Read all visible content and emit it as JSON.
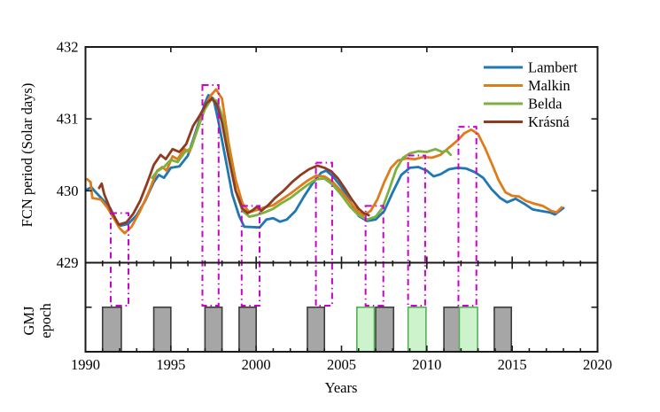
{
  "figure": {
    "ylabel_main": "FCN period (Solar days)",
    "ylabel_lower_line1": "GMJ",
    "ylabel_lower_line2": "epoch",
    "xlabel": "Years"
  },
  "chart_data": {
    "type": "line",
    "title": "",
    "xlabel": "Years",
    "ylabel": "FCN period (Solar days)",
    "xlim": [
      1990,
      2020
    ],
    "ylim_main": [
      429,
      432
    ],
    "x_ticks": [
      1990,
      1995,
      2000,
      2005,
      2010,
      2015,
      2020
    ],
    "y_ticks": [
      429,
      430,
      431,
      432
    ],
    "grid": false,
    "legend_position": "upper right",
    "colors": {
      "spine": "#1a1a1a",
      "highlight": "#cc00cc",
      "gray_bar_fill": "#a6a6a6",
      "gray_bar_stroke": "#3c3c3c",
      "green_bar_fill": "#cdf3cd",
      "green_bar_stroke": "#55b055"
    },
    "series": [
      {
        "name": "Lambert",
        "color": "#1f77b4",
        "points": [
          [
            1990.1,
            430.02
          ],
          [
            1990.35,
            430.05
          ],
          [
            1990.6,
            429.98
          ],
          [
            1991.0,
            429.88
          ],
          [
            1991.45,
            429.76
          ],
          [
            1991.95,
            429.51
          ],
          [
            1992.5,
            429.54
          ],
          [
            1993.0,
            429.66
          ],
          [
            1993.5,
            429.86
          ],
          [
            1994.0,
            430.12
          ],
          [
            1994.3,
            430.22
          ],
          [
            1994.6,
            430.18
          ],
          [
            1995.0,
            430.32
          ],
          [
            1995.5,
            430.34
          ],
          [
            1996.0,
            430.49
          ],
          [
            1996.5,
            430.85
          ],
          [
            1997.0,
            431.22
          ],
          [
            1997.2,
            431.33
          ],
          [
            1997.5,
            431.28
          ],
          [
            1997.8,
            430.95
          ],
          [
            1998.2,
            430.45
          ],
          [
            1998.6,
            429.95
          ],
          [
            1999.0,
            429.65
          ],
          [
            1999.3,
            429.5
          ],
          [
            2000.2,
            429.49
          ],
          [
            2000.6,
            429.6
          ],
          [
            2001.0,
            429.62
          ],
          [
            2001.4,
            429.57
          ],
          [
            2001.8,
            429.6
          ],
          [
            2002.3,
            429.72
          ],
          [
            2002.8,
            429.92
          ],
          [
            2003.3,
            430.1
          ],
          [
            2003.8,
            430.25
          ],
          [
            2004.1,
            430.28
          ],
          [
            2004.5,
            430.2
          ],
          [
            2005.0,
            430.05
          ],
          [
            2005.5,
            429.85
          ],
          [
            2006.0,
            429.65
          ],
          [
            2006.5,
            429.58
          ],
          [
            2007.0,
            429.6
          ],
          [
            2007.5,
            429.72
          ],
          [
            2008.0,
            429.98
          ],
          [
            2008.5,
            430.22
          ],
          [
            2009.0,
            430.32
          ],
          [
            2009.5,
            430.33
          ],
          [
            2010.0,
            430.28
          ],
          [
            2010.4,
            430.2
          ],
          [
            2010.8,
            430.23
          ],
          [
            2011.3,
            430.3
          ],
          [
            2011.8,
            430.32
          ],
          [
            2012.3,
            430.31
          ],
          [
            2012.8,
            430.26
          ],
          [
            2013.3,
            430.18
          ],
          [
            2013.8,
            430.02
          ],
          [
            2014.3,
            429.9
          ],
          [
            2014.7,
            429.84
          ],
          [
            2015.2,
            429.89
          ],
          [
            2015.7,
            429.82
          ],
          [
            2016.2,
            429.74
          ],
          [
            2016.7,
            429.72
          ],
          [
            2017.2,
            429.7
          ],
          [
            2017.5,
            429.67
          ],
          [
            2018.0,
            429.76
          ]
        ]
      },
      {
        "name": "Malkin",
        "color": "#e07b1a",
        "points": [
          [
            1990.1,
            430.16
          ],
          [
            1990.3,
            430.12
          ],
          [
            1990.4,
            429.9
          ],
          [
            1990.9,
            429.88
          ],
          [
            1991.3,
            429.76
          ],
          [
            1991.7,
            429.6
          ],
          [
            1992.0,
            429.48
          ],
          [
            1992.3,
            429.41
          ],
          [
            1992.7,
            429.5
          ],
          [
            1993.2,
            429.72
          ],
          [
            1993.7,
            429.98
          ],
          [
            1994.2,
            430.28
          ],
          [
            1994.5,
            430.33
          ],
          [
            1994.75,
            430.28
          ],
          [
            1995.1,
            430.48
          ],
          [
            1995.4,
            430.44
          ],
          [
            1995.8,
            430.58
          ],
          [
            1996.1,
            430.54
          ],
          [
            1996.5,
            430.82
          ],
          [
            1997.0,
            431.18
          ],
          [
            1997.35,
            431.33
          ],
          [
            1997.65,
            431.41
          ],
          [
            1998.0,
            431.28
          ],
          [
            1998.4,
            430.65
          ],
          [
            1998.8,
            430.15
          ],
          [
            1999.2,
            429.82
          ],
          [
            1999.6,
            429.7
          ],
          [
            2000.0,
            429.73
          ],
          [
            2000.5,
            429.77
          ],
          [
            2001.0,
            429.8
          ],
          [
            2001.5,
            429.88
          ],
          [
            2002.0,
            429.96
          ],
          [
            2002.5,
            430.05
          ],
          [
            2003.0,
            430.14
          ],
          [
            2003.5,
            430.21
          ],
          [
            2004.0,
            430.2
          ],
          [
            2004.5,
            430.12
          ],
          [
            2005.0,
            429.99
          ],
          [
            2005.5,
            429.84
          ],
          [
            2006.0,
            429.7
          ],
          [
            2006.3,
            429.66
          ],
          [
            2006.7,
            429.72
          ],
          [
            2007.1,
            429.88
          ],
          [
            2007.5,
            430.12
          ],
          [
            2007.9,
            430.32
          ],
          [
            2008.3,
            430.42
          ],
          [
            2008.8,
            430.45
          ],
          [
            2009.3,
            430.44
          ],
          [
            2009.8,
            430.47
          ],
          [
            2010.3,
            430.46
          ],
          [
            2010.8,
            430.5
          ],
          [
            2011.3,
            430.6
          ],
          [
            2011.8,
            430.7
          ],
          [
            2012.2,
            430.8
          ],
          [
            2012.6,
            430.85
          ],
          [
            2013.0,
            430.79
          ],
          [
            2013.4,
            430.6
          ],
          [
            2013.8,
            430.38
          ],
          [
            2014.2,
            430.15
          ],
          [
            2014.6,
            429.98
          ],
          [
            2015.0,
            429.93
          ],
          [
            2015.4,
            429.92
          ],
          [
            2015.8,
            429.86
          ],
          [
            2016.3,
            429.82
          ],
          [
            2016.8,
            429.79
          ],
          [
            2017.3,
            429.72
          ],
          [
            2017.6,
            429.7
          ],
          [
            2017.9,
            429.77
          ]
        ]
      },
      {
        "name": "Belda",
        "color": "#7cb13f",
        "points": [
          [
            1993.9,
            430.18
          ],
          [
            1994.2,
            430.27
          ],
          [
            1994.6,
            430.33
          ],
          [
            1995.0,
            430.43
          ],
          [
            1995.4,
            430.4
          ],
          [
            1995.8,
            430.53
          ],
          [
            1996.2,
            430.6
          ],
          [
            1996.6,
            430.88
          ],
          [
            1997.0,
            431.14
          ],
          [
            1997.4,
            431.28
          ],
          [
            1997.7,
            431.25
          ],
          [
            1998.0,
            431.05
          ],
          [
            1998.4,
            430.5
          ],
          [
            1998.8,
            430.0
          ],
          [
            1999.2,
            429.72
          ],
          [
            1999.6,
            429.64
          ],
          [
            2000.0,
            429.66
          ],
          [
            2000.5,
            429.7
          ],
          [
            2001.0,
            429.75
          ],
          [
            2001.5,
            429.83
          ],
          [
            2002.0,
            429.9
          ],
          [
            2002.5,
            429.99
          ],
          [
            2003.0,
            430.08
          ],
          [
            2003.5,
            430.16
          ],
          [
            2004.0,
            430.17
          ],
          [
            2004.5,
            430.08
          ],
          [
            2005.0,
            429.94
          ],
          [
            2005.5,
            429.78
          ],
          [
            2006.0,
            429.66
          ],
          [
            2006.5,
            429.6
          ],
          [
            2007.0,
            429.64
          ],
          [
            2007.4,
            429.76
          ],
          [
            2007.8,
            430.02
          ],
          [
            2008.2,
            430.3
          ],
          [
            2008.6,
            430.46
          ],
          [
            2009.0,
            430.52
          ],
          [
            2009.5,
            430.55
          ],
          [
            2010.0,
            430.54
          ],
          [
            2010.5,
            430.58
          ],
          [
            2010.9,
            430.54
          ],
          [
            2011.15,
            430.56
          ],
          [
            2011.4,
            430.5
          ]
        ]
      },
      {
        "name": "Krásná",
        "color": "#8e3b20",
        "points": [
          [
            1990.8,
            430.04
          ],
          [
            1990.95,
            430.1
          ],
          [
            1991.1,
            429.95
          ],
          [
            1991.5,
            429.72
          ],
          [
            1991.95,
            429.53
          ],
          [
            1992.4,
            429.56
          ],
          [
            1992.8,
            429.68
          ],
          [
            1993.2,
            429.86
          ],
          [
            1993.6,
            430.1
          ],
          [
            1994.0,
            430.36
          ],
          [
            1994.4,
            430.5
          ],
          [
            1994.7,
            430.44
          ],
          [
            1995.1,
            430.58
          ],
          [
            1995.5,
            430.54
          ],
          [
            1995.9,
            430.65
          ],
          [
            1996.3,
            430.9
          ],
          [
            1996.7,
            431.05
          ],
          [
            1997.1,
            431.22
          ],
          [
            1997.4,
            431.28
          ],
          [
            1997.7,
            431.2
          ],
          [
            1998.0,
            430.95
          ],
          [
            1998.4,
            430.45
          ],
          [
            1998.8,
            430.0
          ],
          [
            1999.2,
            429.75
          ],
          [
            1999.5,
            429.69
          ],
          [
            1999.8,
            429.73
          ],
          [
            2000.05,
            429.78
          ],
          [
            2000.3,
            429.72
          ],
          [
            2000.7,
            429.8
          ],
          [
            2001.1,
            429.9
          ],
          [
            2001.6,
            430.0
          ],
          [
            2002.1,
            430.12
          ],
          [
            2002.6,
            430.22
          ],
          [
            2003.1,
            430.3
          ],
          [
            2003.6,
            430.35
          ],
          [
            2004.0,
            430.32
          ],
          [
            2004.4,
            430.27
          ],
          [
            2004.8,
            430.17
          ],
          [
            2005.2,
            430.03
          ],
          [
            2005.6,
            429.88
          ],
          [
            2006.0,
            429.75
          ],
          [
            2006.3,
            429.69
          ],
          [
            2006.6,
            429.66
          ]
        ]
      }
    ],
    "highlight_rects": [
      {
        "x1": 1991.48,
        "x2": 1992.52,
        "top": 429.69
      },
      {
        "x1": 1996.85,
        "x2": 1997.8,
        "top": 431.47
      },
      {
        "x1": 1999.15,
        "x2": 2000.2,
        "top": 429.79
      },
      {
        "x1": 2003.5,
        "x2": 2004.45,
        "top": 430.39
      },
      {
        "x1": 2006.41,
        "x2": 2007.45,
        "top": 429.79
      },
      {
        "x1": 2008.9,
        "x2": 2009.9,
        "top": 430.49
      },
      {
        "x1": 2011.85,
        "x2": 2012.9,
        "top": 430.89
      }
    ],
    "gmj_epochs": {
      "bar_height_frac": 0.5,
      "gray": [
        [
          1991.0,
          1992.1
        ],
        [
          1994.0,
          1995.0
        ],
        [
          1997.0,
          1998.0
        ],
        [
          1999.0,
          2000.0
        ],
        [
          2003.0,
          2004.0
        ],
        [
          2007.0,
          2008.05
        ],
        [
          2011.0,
          2012.0
        ],
        [
          2013.95,
          2014.95
        ]
      ],
      "green": [
        [
          2005.9,
          2006.92
        ],
        [
          2008.9,
          2009.95
        ],
        [
          2011.9,
          2012.97
        ]
      ]
    }
  }
}
